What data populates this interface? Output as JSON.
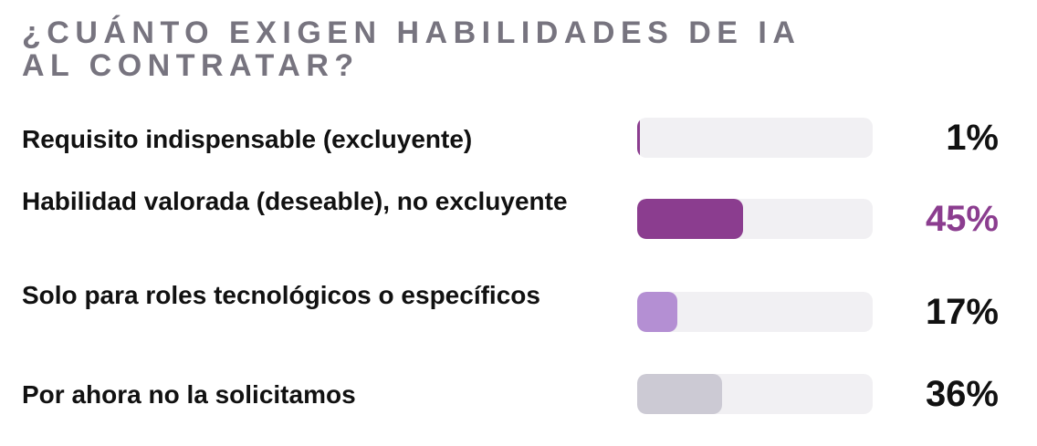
{
  "chart_data": {
    "type": "bar",
    "title": "¿CUÁNTO EXIGEN HABILIDADES DE IA AL CONTRATAR?",
    "categories": [
      "Requisito indispensable (excluyente)",
      "Habilidad valorada (deseable), no excluyente",
      "Solo para roles tecnológicos o específicos",
      "Por ahora no la solicitamos"
    ],
    "values": [
      1,
      45,
      17,
      36
    ],
    "value_labels": [
      "1%",
      "45%",
      "17%",
      "36%"
    ],
    "xlim": [
      0,
      100
    ],
    "colors": [
      "#8b3d8f",
      "#8b3d8f",
      "#b48fd3",
      "#cccad4"
    ],
    "label_colors": [
      "#111111",
      "#8b3d8f",
      "#111111",
      "#111111"
    ],
    "track_color": "#f1f0f3"
  }
}
